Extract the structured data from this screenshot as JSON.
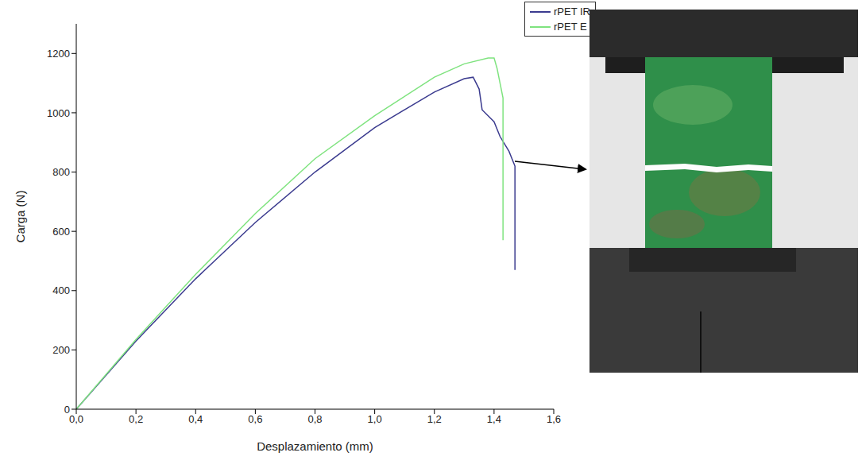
{
  "chart_data": {
    "type": "line",
    "x_label": "Desplazamiento (mm)",
    "y_label": "Carga (N)",
    "xlim": [
      0,
      1.6
    ],
    "ylim": [
      0,
      1300
    ],
    "xticks": [
      {
        "value": 0,
        "label": "0,0"
      },
      {
        "value": 0.2,
        "label": "0,2"
      },
      {
        "value": 0.4,
        "label": "0,4"
      },
      {
        "value": 0.6,
        "label": "0,6"
      },
      {
        "value": 0.8,
        "label": "0,8"
      },
      {
        "value": 1.0,
        "label": "1,0"
      },
      {
        "value": 1.2,
        "label": "1,2"
      },
      {
        "value": 1.4,
        "label": "1,4"
      },
      {
        "value": 1.6,
        "label": "1,6"
      }
    ],
    "yticks": [
      0,
      200,
      400,
      600,
      800,
      1000,
      1200
    ],
    "grid": false,
    "legend": "upper right",
    "series": [
      {
        "name": "rPET IR",
        "color": "#3b3b8f",
        "x": [
          0,
          0.2,
          0.4,
          0.6,
          0.8,
          1.0,
          1.2,
          1.3,
          1.33,
          1.35,
          1.36,
          1.4,
          1.42,
          1.45,
          1.47,
          1.47
        ],
        "values": [
          0,
          230,
          440,
          630,
          800,
          950,
          1070,
          1115,
          1120,
          1080,
          1010,
          970,
          920,
          870,
          820,
          470
        ]
      },
      {
        "name": "rPET E",
        "color": "#7fe37f",
        "x": [
          0,
          0.2,
          0.4,
          0.6,
          0.8,
          1.0,
          1.2,
          1.3,
          1.38,
          1.4,
          1.41,
          1.42,
          1.43,
          1.43
        ],
        "values": [
          0,
          235,
          455,
          660,
          845,
          990,
          1120,
          1165,
          1185,
          1185,
          1150,
          1100,
          1050,
          570
        ]
      }
    ]
  }
}
